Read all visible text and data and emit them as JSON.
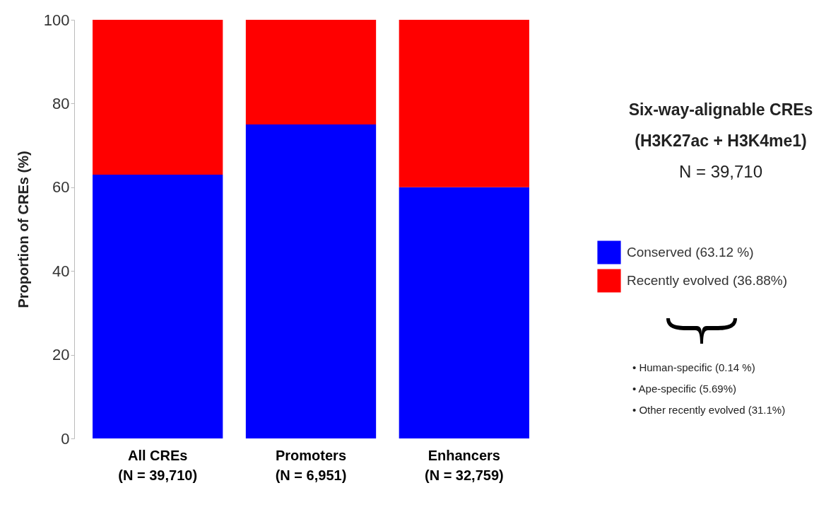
{
  "chart_data": {
    "type": "bar",
    "stacked": true,
    "title": "Six-way-alignable CREs\n(H3K27ac + H3K4me1)",
    "subtitle": "N = 39,710",
    "ylabel": "Proportion of CREs (%)",
    "categories": [
      "All CREs\n(N = 39,710)",
      "Promoters\n(N = 6,951)",
      "Enhancers\n(N = 32,759)"
    ],
    "series": [
      {
        "name": "Conserved (63.12 %)",
        "color": "#0000ff",
        "values": [
          63,
          75,
          60
        ]
      },
      {
        "name": "Recently evolved (36.88%)",
        "color": "#ff0000",
        "values": [
          37,
          25,
          40
        ]
      }
    ],
    "ylim": [
      0,
      100
    ],
    "yticks": [
      0,
      20,
      40,
      60,
      80,
      100
    ],
    "grid": false,
    "legend": "right",
    "annotations": [
      "•   Human-specific (0.14 %)",
      "•   Ape-specific (5.69%)",
      "•   Other recently evolved (31.1%)"
    ]
  }
}
